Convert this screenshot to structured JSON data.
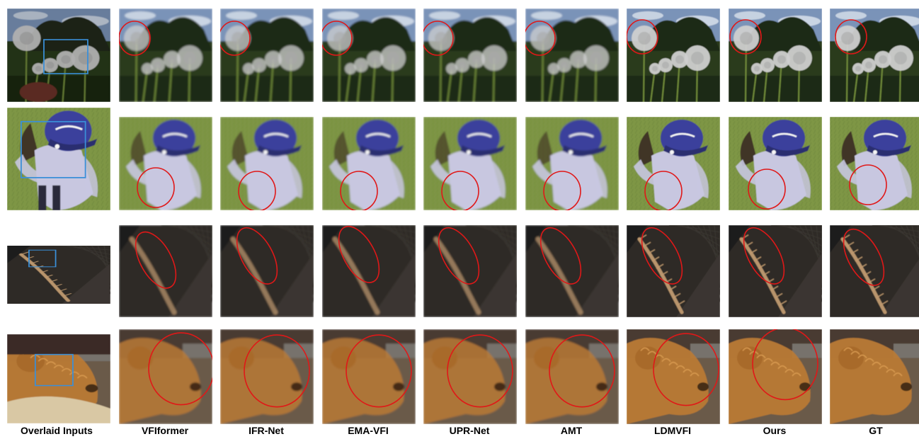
{
  "columns": [
    {
      "label": "Overlaid Inputs"
    },
    {
      "label": "VFIformer"
    },
    {
      "label": "IFR-Net"
    },
    {
      "label": "EMA-VFI"
    },
    {
      "label": "UPR-Net"
    },
    {
      "label": "AMT"
    },
    {
      "label": "LDMVFI"
    },
    {
      "label": "Ours"
    },
    {
      "label": "GT"
    }
  ],
  "rows": [
    {
      "scene": "dandelions",
      "colors": {
        "sky": "#7a93b8",
        "trees": "#1f2a18",
        "ground": "#2a3a1c",
        "flower": "#cfcfcf",
        "stem": "#6f8a3a"
      }
    },
    {
      "scene": "girl-cap",
      "colors": {
        "grass": "#7e9645",
        "cap": "#3a3f9c",
        "shirt": "#c8c7e0",
        "hair": "#3a2a22"
      }
    },
    {
      "scene": "feather-roof",
      "colors": {
        "roof": "#2e2b27",
        "feather": "#c09a70",
        "shadow": "#1e1c1a"
      }
    },
    {
      "scene": "dog",
      "colors": {
        "dog": "#b97a36",
        "ground": "#6b5a48",
        "bg": "#4a3a30"
      }
    }
  ],
  "markers": {
    "circle_color": "#e01818",
    "box_color": "#3a8fd8"
  }
}
